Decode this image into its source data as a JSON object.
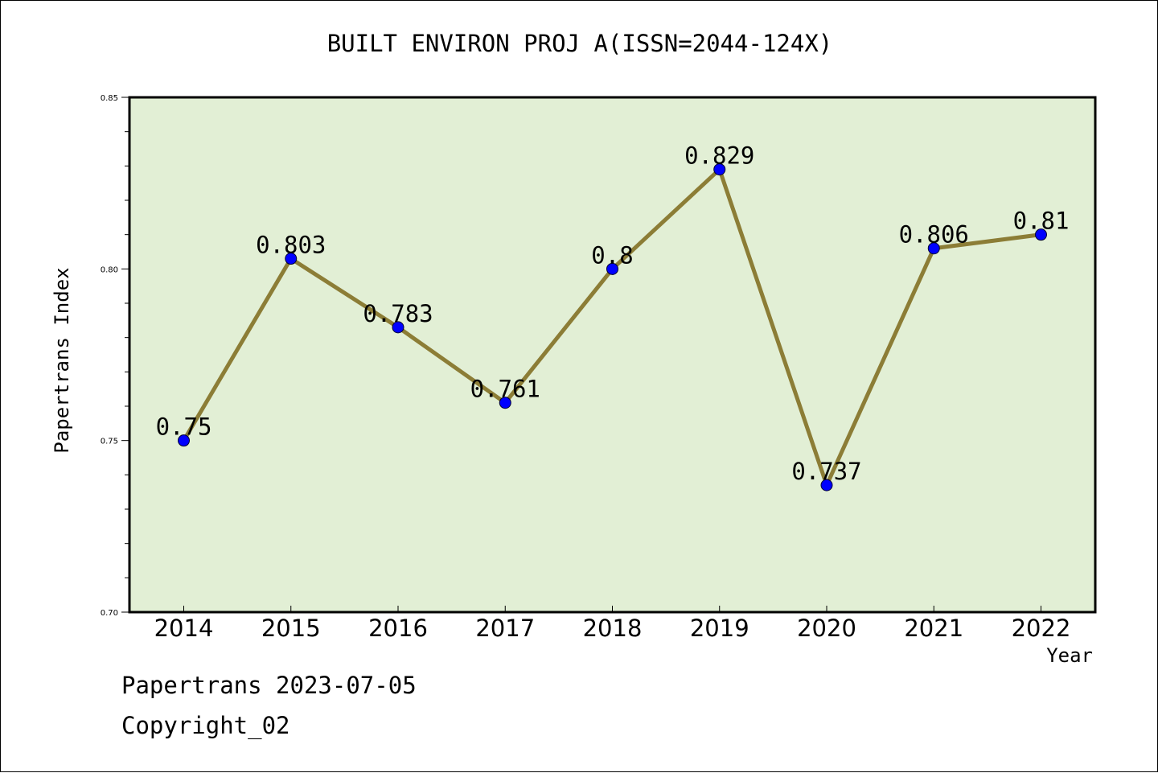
{
  "header": {
    "title": "BUILT ENVIRON PROJ A(ISSN=2044-124X)"
  },
  "footer": {
    "line1": "Papertrans 2023-07-05",
    "line2": "Copyright_02"
  },
  "colors": {
    "plot_bg": "#e2efd5",
    "line": "#8c7d36",
    "marker": "#0000ff"
  },
  "chart_data": {
    "type": "line",
    "title": "BUILT ENVIRON PROJ A(ISSN=2044-124X)",
    "xlabel": "Year",
    "ylabel": "Papertrans Index",
    "categories": [
      "2014",
      "2015",
      "2016",
      "2017",
      "2018",
      "2019",
      "2020",
      "2021",
      "2022"
    ],
    "series": [
      {
        "values": [
          0.75,
          0.803,
          0.783,
          0.761,
          0.8,
          0.829,
          0.737,
          0.806,
          0.81
        ]
      }
    ],
    "data_labels": [
      "0.75",
      "0.803",
      "0.783",
      "0.761",
      "0.8",
      "0.829",
      "0.737",
      "0.806",
      "0.81"
    ],
    "ylim": [
      0.7,
      0.85
    ],
    "yticks": [
      "0.70",
      "0.75",
      "0.80",
      "0.85"
    ],
    "grid": false,
    "legend": "none"
  }
}
